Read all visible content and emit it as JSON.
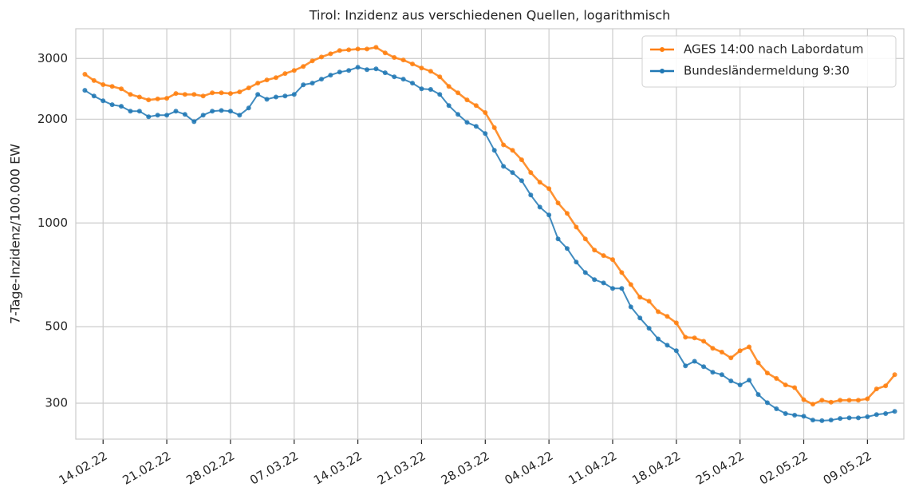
{
  "chart_data": {
    "type": "line",
    "title": "Tirol: Inzidenz aus verschiedenen Quellen, logarithmisch",
    "y_label": "7-Tage-Inzidenz/100.000 EW",
    "x": [
      "12.02.22",
      "13.02.22",
      "14.02.22",
      "15.02.22",
      "16.02.22",
      "17.02.22",
      "18.02.22",
      "19.02.22",
      "20.02.22",
      "21.02.22",
      "22.02.22",
      "23.02.22",
      "24.02.22",
      "25.02.22",
      "26.02.22",
      "27.02.22",
      "28.02.22",
      "01.03.22",
      "02.03.22",
      "03.03.22",
      "04.03.22",
      "05.03.22",
      "06.03.22",
      "07.03.22",
      "08.03.22",
      "09.03.22",
      "10.03.22",
      "11.03.22",
      "12.03.22",
      "13.03.22",
      "14.03.22",
      "15.03.22",
      "16.03.22",
      "17.03.22",
      "18.03.22",
      "19.03.22",
      "20.03.22",
      "21.03.22",
      "22.03.22",
      "23.03.22",
      "24.03.22",
      "25.03.22",
      "26.03.22",
      "27.03.22",
      "28.03.22",
      "29.03.22",
      "30.03.22",
      "31.03.22",
      "01.04.22",
      "02.04.22",
      "03.04.22",
      "04.04.22",
      "05.04.22",
      "06.04.22",
      "07.04.22",
      "08.04.22",
      "09.04.22",
      "10.04.22",
      "11.04.22",
      "12.04.22",
      "13.04.22",
      "14.04.22",
      "15.04.22",
      "16.04.22",
      "17.04.22",
      "18.04.22",
      "19.04.22",
      "20.04.22",
      "21.04.22",
      "22.04.22",
      "23.04.22",
      "24.04.22",
      "25.04.22",
      "26.04.22",
      "27.04.22",
      "28.04.22",
      "29.04.22",
      "30.04.22",
      "01.05.22",
      "02.05.22",
      "03.05.22",
      "04.05.22",
      "05.05.22",
      "06.05.22",
      "07.05.22",
      "08.05.22",
      "09.05.22",
      "10.05.22",
      "11.05.22",
      "12.05.22"
    ],
    "series": [
      {
        "name": "AGES 14:00 nach Labordatum",
        "color": "#ff7f0e",
        "values": [
          2700,
          2590,
          2520,
          2490,
          2450,
          2360,
          2320,
          2275,
          2290,
          2300,
          2375,
          2360,
          2360,
          2335,
          2385,
          2385,
          2375,
          2400,
          2465,
          2545,
          2600,
          2640,
          2713,
          2770,
          2845,
          2953,
          3030,
          3097,
          3164,
          3180,
          3197,
          3197,
          3233,
          3115,
          3020,
          2970,
          2893,
          2815,
          2755,
          2655,
          2490,
          2385,
          2275,
          2190,
          2090,
          1890,
          1685,
          1625,
          1525,
          1400,
          1313,
          1258,
          1143,
          1066,
          973,
          899,
          834,
          804,
          783,
          718,
          663,
          609,
          593,
          553,
          536,
          513,
          466,
          464,
          454,
          433,
          422,
          406,
          426,
          437,
          393,
          367,
          354,
          339,
          333,
          307,
          298,
          306,
          302,
          306,
          306,
          306,
          309,
          330,
          337,
          363
        ]
      },
      {
        "name": "Bundesländermeldung 9:30",
        "color": "#1f77b4",
        "values": [
          2425,
          2335,
          2262,
          2203,
          2180,
          2110,
          2110,
          2033,
          2055,
          2055,
          2110,
          2065,
          1968,
          2055,
          2110,
          2120,
          2110,
          2055,
          2155,
          2360,
          2285,
          2320,
          2335,
          2360,
          2517,
          2545,
          2613,
          2685,
          2740,
          2770,
          2830,
          2785,
          2800,
          2727,
          2655,
          2613,
          2545,
          2450,
          2440,
          2360,
          2190,
          2065,
          1958,
          1907,
          1818,
          1625,
          1460,
          1400,
          1327,
          1205,
          1112,
          1055,
          899,
          843,
          770,
          718,
          685,
          670,
          646,
          646,
          571,
          530,
          495,
          461,
          442,
          426,
          385,
          397,
          383,
          369,
          363,
          348,
          339,
          350,
          318,
          301,
          289,
          280,
          277,
          275,
          268,
          267,
          268,
          271,
          272,
          272,
          274,
          278,
          280,
          284
        ]
      }
    ],
    "xlim": [
      "11.02.22",
      "13.05.22"
    ],
    "xticks": [
      "14.02.22",
      "21.02.22",
      "28.02.22",
      "07.03.22",
      "14.03.22",
      "21.03.22",
      "28.03.22",
      "04.04.22",
      "11.04.22",
      "18.04.22",
      "25.04.22",
      "02.05.22",
      "09.05.22"
    ],
    "ylim": [
      236,
      3660
    ],
    "yticks": [
      300,
      500,
      1000,
      2000,
      3000
    ],
    "y_scale": "log",
    "grid": true,
    "legend": "upper right"
  }
}
